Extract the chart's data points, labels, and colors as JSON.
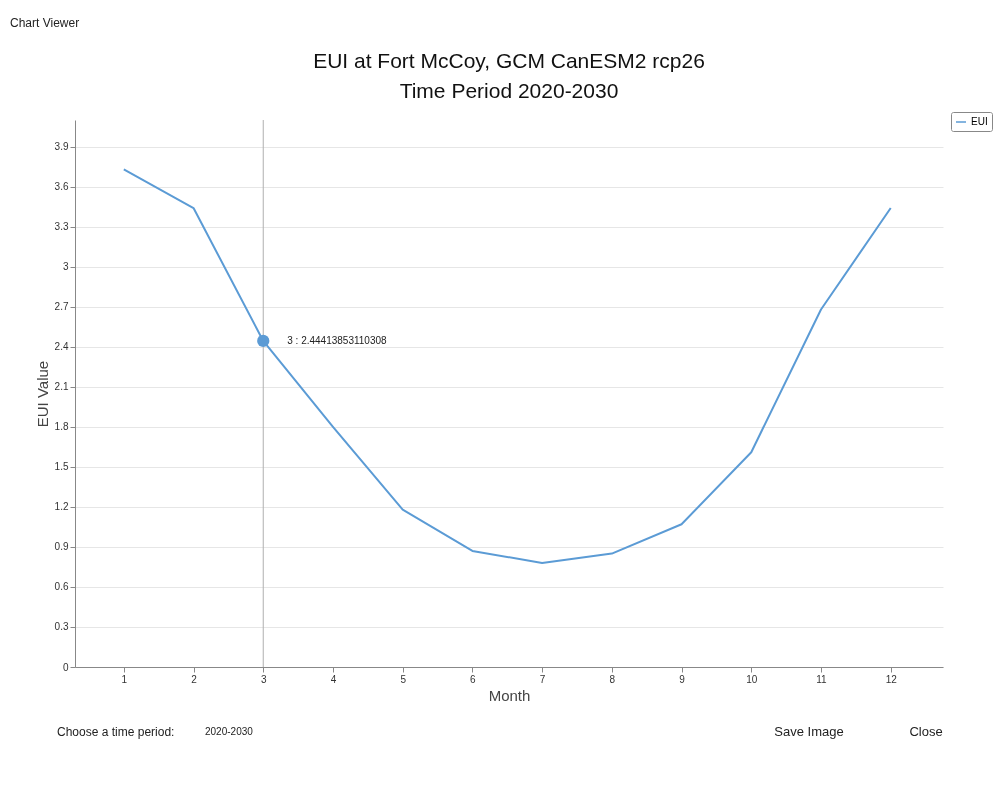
{
  "chart_data": {
    "type": "line",
    "title": "EUI at Fort McCoy, GCM CanESM2 rcp26",
    "subtitle": "Time Period 2020-2030",
    "xlabel": "Month",
    "ylabel": "EUI Value",
    "x": [
      1,
      2,
      3,
      4,
      5,
      6,
      7,
      8,
      9,
      10,
      11,
      12
    ],
    "series": [
      {
        "name": "EUI",
        "color": "#5b9bd5",
        "values": [
          3.73,
          3.44,
          2.44413853110308,
          1.8,
          1.18,
          0.87,
          0.78,
          0.85,
          1.07,
          1.61,
          2.68,
          3.44
        ]
      }
    ],
    "xlim": [
      0.3,
      12.75
    ],
    "xticks": [
      1,
      2,
      3,
      4,
      5,
      6,
      7,
      8,
      9,
      10,
      11,
      12
    ],
    "ylim": [
      0,
      4.1
    ],
    "yticks": [
      0,
      0.3,
      0.6,
      0.9,
      1.2,
      1.5,
      1.8,
      2.1,
      2.4,
      2.7,
      3,
      3.3,
      3.6,
      3.9
    ],
    "grid": "y",
    "legend": "top right",
    "marker": "none",
    "line_style": "solid",
    "ref_lines": [
      {
        "axis": "x",
        "value": 3,
        "label": null,
        "color": "#b0b0b0"
      }
    ],
    "annotations": [
      {
        "text": "3 : 2.44413853110308",
        "x": 3,
        "y": 2.44413853110308
      },
      "Chart Viewer",
      "Choose a time period:",
      "2020-2030",
      "Save Image",
      "Close"
    ]
  }
}
